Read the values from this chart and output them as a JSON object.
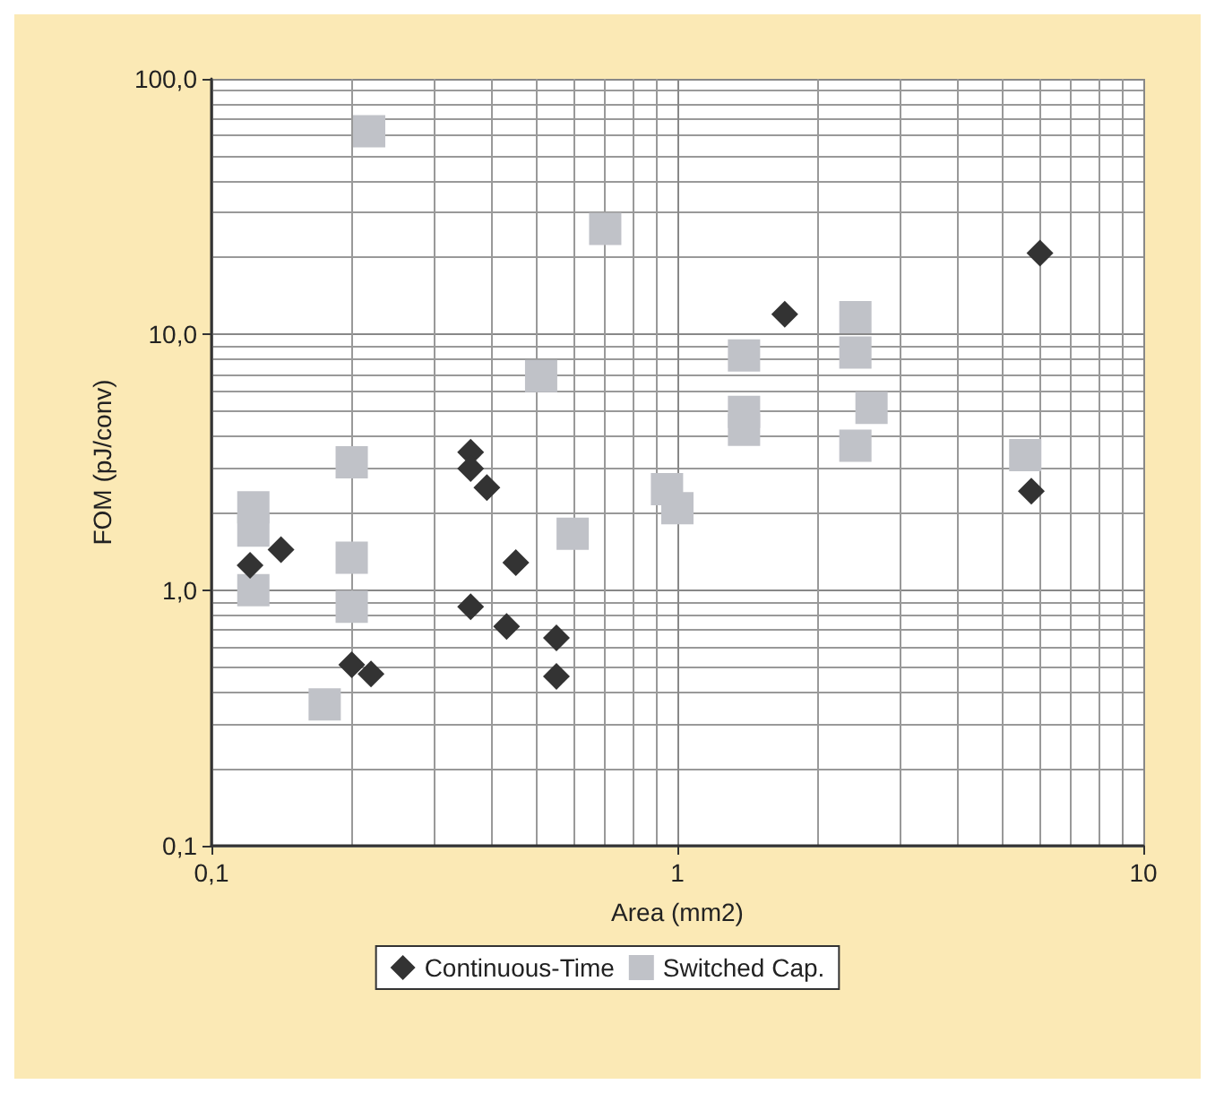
{
  "chart_data": {
    "type": "scatter",
    "xlabel": "Area (mm2)",
    "ylabel": "FOM (pJ/conv)",
    "log": "xy",
    "grid": true,
    "legend": "bottom",
    "xlim": [
      0.1,
      10
    ],
    "xticks": [
      {
        "value": 0.1,
        "label": "0,1"
      },
      1,
      10
    ],
    "ylim": [
      0.1,
      100
    ],
    "yticks": [
      {
        "value": 0.1,
        "label": "0,1"
      },
      {
        "value": 1,
        "label": "1,0"
      },
      {
        "value": 10,
        "label": "10,0"
      },
      {
        "value": 100,
        "label": "100,0"
      }
    ],
    "series": [
      {
        "name": "Continuous-Time",
        "color": "#333333",
        "marker": "diamond",
        "x": [
          0.121,
          0.141,
          0.2,
          0.22,
          0.36,
          0.36,
          0.39,
          0.45,
          0.36,
          0.43,
          0.55,
          0.55,
          1.7,
          6.0,
          5.75
        ],
        "values": [
          1.25,
          1.44,
          0.51,
          0.47,
          3.46,
          2.99,
          2.52,
          1.28,
          0.86,
          0.72,
          0.65,
          0.46,
          12.0,
          20.8,
          2.44
        ]
      },
      {
        "name": "Switched Cap.",
        "color": "#c0c2c8",
        "marker": "square",
        "x": [
          0.218,
          0.7,
          0.51,
          0.2,
          0.123,
          0.123,
          0.123,
          0.2,
          0.2,
          0.175,
          0.596,
          0.95,
          1.0,
          1.39,
          1.39,
          1.39,
          2.41,
          2.41,
          2.61,
          2.41,
          5.58
        ],
        "values": [
          62.4,
          25.9,
          6.87,
          3.16,
          2.11,
          1.71,
          1.0,
          1.34,
          0.86,
          0.357,
          1.66,
          2.48,
          2.09,
          8.28,
          4.98,
          4.24,
          11.7,
          8.5,
          5.16,
          3.67,
          3.37
        ]
      }
    ]
  }
}
